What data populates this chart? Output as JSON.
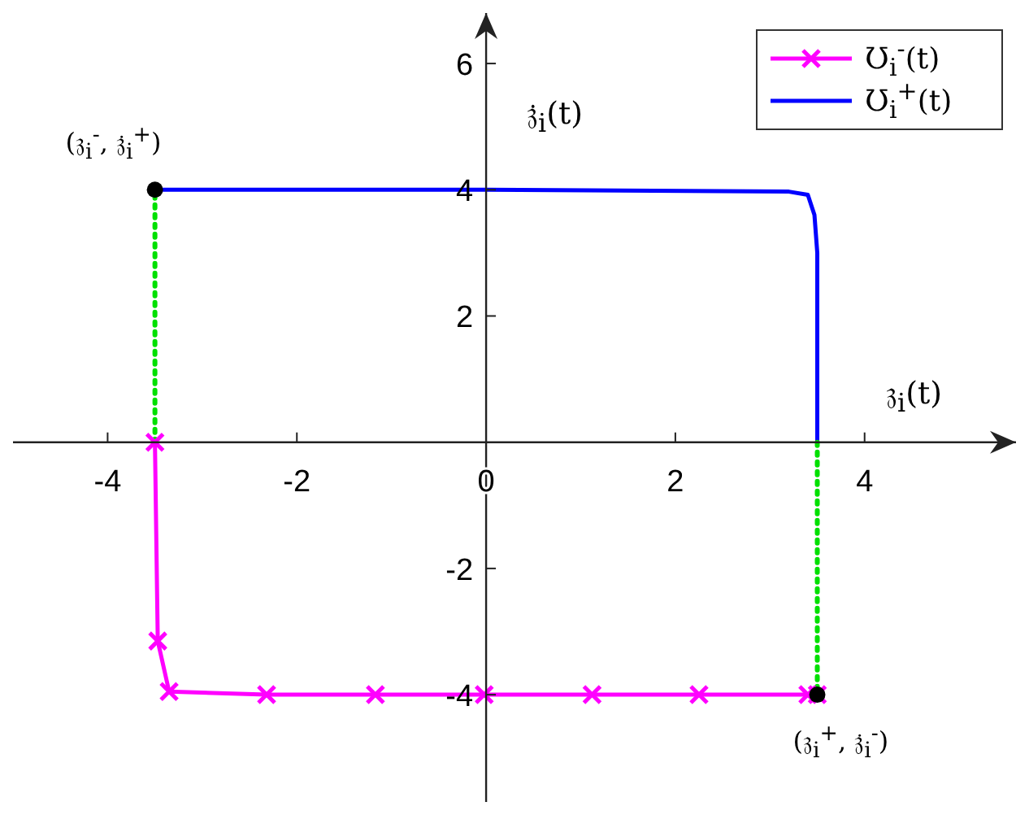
{
  "chart_data": {
    "type": "line",
    "xlabel": "𝔷$_{i}$(t)",
    "ylabel": "𝔷̇$_{i}$(t)",
    "xlim": [
      -5,
      5.6
    ],
    "ylim": [
      -5.7,
      6.8
    ],
    "xticks": [
      -4,
      -2,
      0,
      2,
      4
    ],
    "yticks": [
      -4,
      -2,
      2,
      4,
      6
    ],
    "legend": "top right",
    "series": [
      {
        "name": "Ʊ$_{i}$$^{-}$(t)",
        "color": "#ff00ff",
        "marker": "cross",
        "x": [
          -3.5,
          -3.47,
          -3.35,
          -2.32,
          -1.17,
          -0.02,
          1.12,
          2.25,
          3.4,
          3.5
        ],
        "values": [
          0,
          -3.15,
          -3.95,
          -4,
          -4,
          -4,
          -4,
          -4,
          -4,
          -4
        ]
      },
      {
        "name": "Ʊ$_{i}$$^{+}$(t)",
        "color": "#0000ff",
        "marker": "none",
        "x": [
          -3.5,
          0,
          3.2,
          3.4,
          3.47,
          3.5,
          3.5
        ],
        "values": [
          4,
          4,
          3.97,
          3.92,
          3.6,
          3,
          0
        ]
      },
      {
        "type": "line",
        "color": "#00e000",
        "line_style": "dotted",
        "marker": "none",
        "x": [
          -3.5,
          -3.5
        ],
        "values": [
          0,
          4
        ]
      },
      {
        "type": "line",
        "color": "#00e000",
        "line_style": "dotted",
        "marker": "none",
        "x": [
          3.5,
          3.5
        ],
        "values": [
          0,
          -4
        ]
      },
      {
        "type": "scatter",
        "color": "#000000",
        "marker": "circle",
        "x": [
          -3.5,
          3.5
        ],
        "values": [
          4,
          -4
        ]
      }
    ],
    "annotations": [
      {
        "text": "(𝔷$_{i}$$^{-}$, 𝔷̇$_{i}$$^{+}$)",
        "x": -3.5,
        "y": 4
      },
      {
        "text": "(𝔷$_{i}$$^{+}$, 𝔷̇$_{i}$$^{-}$)",
        "x": 3.5,
        "y": -4
      }
    ]
  }
}
